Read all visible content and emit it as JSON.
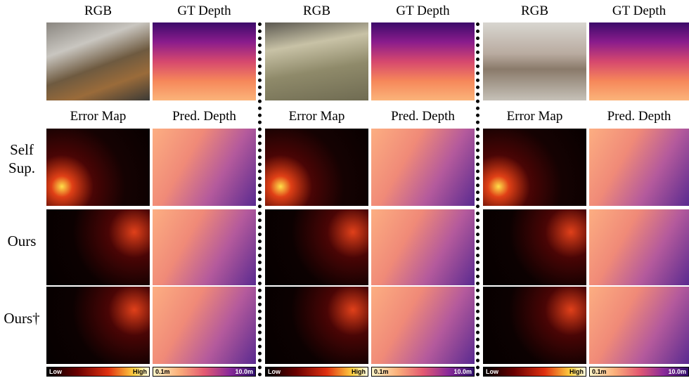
{
  "groups": [
    {
      "top_headers": [
        "RGB",
        "GT Depth"
      ],
      "bottom_headers": [
        "Error Map",
        "Pred. Depth"
      ],
      "colorbars": {
        "error": {
          "low": "Low",
          "high": "High"
        },
        "depth": {
          "min": "0.1m",
          "max": "10.0m"
        }
      }
    },
    {
      "top_headers": [
        "RGB",
        "GT Depth"
      ],
      "bottom_headers": [
        "Error Map",
        "Pred. Depth"
      ],
      "colorbars": {
        "error": {
          "low": "Low",
          "high": "High"
        },
        "depth": {
          "min": "0.1m",
          "max": "10.0m"
        }
      }
    },
    {
      "top_headers": [
        "RGB",
        "GT Depth"
      ],
      "bottom_headers": [
        "Error Map",
        "Pred. Depth"
      ],
      "colorbars": {
        "error": {
          "low": "Low",
          "high": "High"
        },
        "depth": {
          "min": "0.1m",
          "max": "10.0m"
        }
      }
    }
  ],
  "row_labels": [
    "Self Sup.",
    "Ours",
    "Ours†"
  ]
}
